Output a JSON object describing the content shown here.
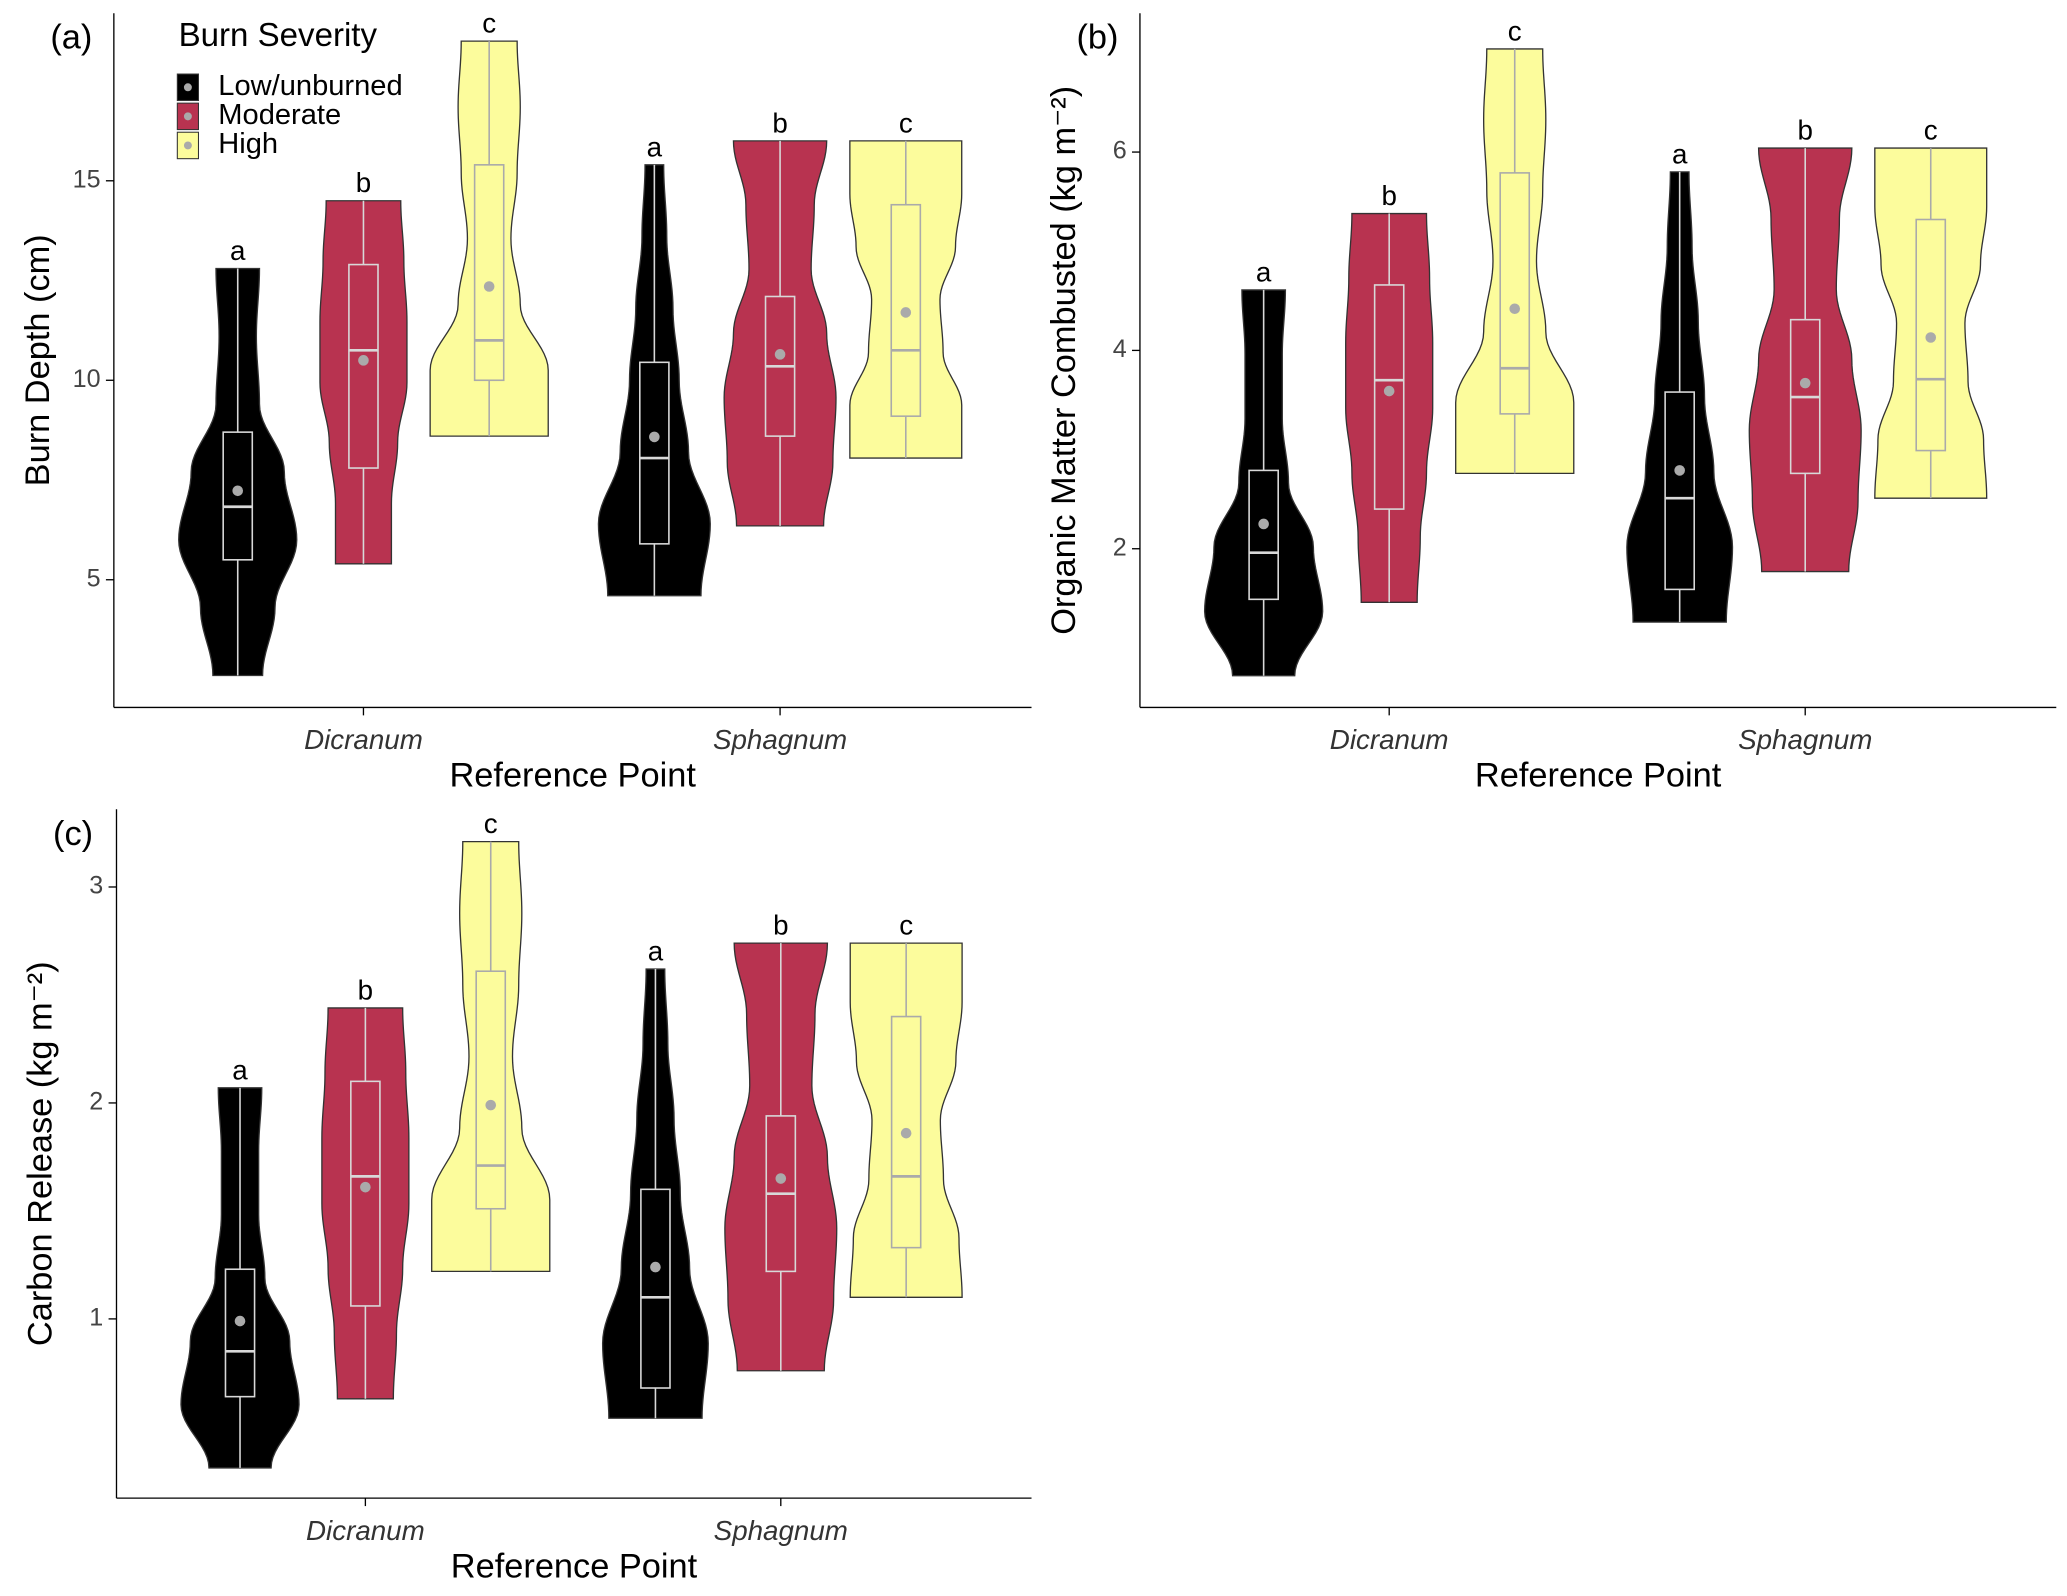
{
  "legend": {
    "title": "Burn Severity",
    "entries": [
      {
        "name": "Low/unburned",
        "color": "#000000"
      },
      {
        "name": "Moderate",
        "color": "#b83350"
      },
      {
        "name": "High",
        "color": "#fcfc9c"
      }
    ]
  },
  "chart_data": [
    {
      "type": "violin",
      "panel_label": "(a)",
      "x_label": "Reference Point",
      "y_label": "Burn Depth (cm)",
      "categories": [
        "Dicranum",
        "Sphagnum"
      ],
      "ylim": [
        1.8,
        19.2
      ],
      "yticks": [
        5,
        10,
        15
      ],
      "series": [
        {
          "color": "#000000",
          "values": [
            {
              "min": 2.6,
              "q1": 5.5,
              "median": 6.83,
              "q3": 8.7,
              "max": 12.8,
              "mean": 7.23,
              "letter": "a",
              "density": [
                0.4,
                0.6,
                0.95,
                0.75,
                0.35,
                0.3,
                0.35
              ]
            },
            {
              "min": 4.6,
              "q1": 5.9,
              "median": 8.05,
              "q3": 10.45,
              "max": 15.4,
              "mean": 8.58,
              "letter": "a",
              "density": [
                0.75,
                0.9,
                0.55,
                0.4,
                0.3,
                0.2,
                0.15
              ]
            }
          ]
        },
        {
          "color": "#b83350",
          "values": [
            {
              "min": 5.4,
              "q1": 7.8,
              "median": 10.75,
              "q3": 12.9,
              "max": 14.5,
              "mean": 10.5,
              "letter": "b",
              "density": [
                0.45,
                0.45,
                0.55,
                0.7,
                0.7,
                0.65,
                0.6
              ]
            },
            {
              "min": 6.35,
              "q1": 8.6,
              "median": 10.35,
              "q3": 12.1,
              "max": 16.0,
              "mean": 10.65,
              "letter": "b",
              "density": [
                0.7,
                0.85,
                0.9,
                0.75,
                0.5,
                0.55,
                0.75
              ]
            }
          ]
        },
        {
          "color": "#fcfc9c",
          "values": [
            {
              "min": 8.6,
              "q1": 10.0,
              "median": 11.0,
              "q3": 15.4,
              "max": 18.5,
              "mean": 12.35,
              "letter": "c",
              "density": [
                0.95,
                0.95,
                0.5,
                0.35,
                0.45,
                0.5,
                0.45
              ]
            },
            {
              "min": 8.05,
              "q1": 9.1,
              "median": 10.75,
              "q3": 14.4,
              "max": 16.0,
              "mean": 11.7,
              "letter": "c",
              "density": [
                0.9,
                0.9,
                0.6,
                0.55,
                0.8,
                0.9,
                0.9
              ]
            }
          ]
        }
      ]
    },
    {
      "type": "violin",
      "panel_label": "(b)",
      "x_label": "Reference Point",
      "y_label": "Organic Matter Combusted (kg m⁻²)",
      "categories": [
        "Dicranum",
        "Sphagnum"
      ],
      "ylim": [
        0.4,
        7.4
      ],
      "yticks": [
        2,
        4,
        6
      ],
      "series": [
        {
          "color": "#000000",
          "values": [
            {
              "min": 0.72,
              "q1": 1.49,
              "median": 1.96,
              "q3": 2.79,
              "max": 4.61,
              "mean": 2.25,
              "letter": "a",
              "density": [
                0.5,
                0.95,
                0.8,
                0.4,
                0.3,
                0.3,
                0.35
              ]
            },
            {
              "min": 1.26,
              "q1": 1.59,
              "median": 2.51,
              "q3": 3.58,
              "max": 5.8,
              "mean": 2.79,
              "letter": "a",
              "density": [
                0.75,
                0.85,
                0.55,
                0.4,
                0.3,
                0.2,
                0.15
              ]
            }
          ]
        },
        {
          "color": "#b83350",
          "values": [
            {
              "min": 1.46,
              "q1": 2.4,
              "median": 3.7,
              "q3": 4.66,
              "max": 5.38,
              "mean": 3.59,
              "letter": "b",
              "density": [
                0.45,
                0.5,
                0.6,
                0.7,
                0.7,
                0.65,
                0.6
              ]
            },
            {
              "min": 1.77,
              "q1": 2.76,
              "median": 3.53,
              "q3": 4.31,
              "max": 6.04,
              "mean": 3.67,
              "letter": "b",
              "density": [
                0.7,
                0.85,
                0.9,
                0.75,
                0.5,
                0.55,
                0.75
              ]
            }
          ]
        },
        {
          "color": "#fcfc9c",
          "values": [
            {
              "min": 2.76,
              "q1": 3.36,
              "median": 3.82,
              "q3": 5.79,
              "max": 7.04,
              "mean": 4.42,
              "letter": "c",
              "density": [
                0.95,
                0.95,
                0.5,
                0.35,
                0.45,
                0.5,
                0.45
              ]
            },
            {
              "min": 2.51,
              "q1": 2.99,
              "median": 3.71,
              "q3": 5.32,
              "max": 6.04,
              "mean": 4.13,
              "letter": "c",
              "density": [
                0.9,
                0.85,
                0.6,
                0.55,
                0.8,
                0.9,
                0.9
              ]
            }
          ]
        }
      ]
    },
    {
      "type": "violin",
      "panel_label": "(c)",
      "x_label": "Reference Point",
      "y_label": "Carbon Release (kg m⁻²)",
      "categories": [
        "Dicranum",
        "Sphagnum"
      ],
      "ylim": [
        0.17,
        3.36
      ],
      "yticks": [
        1,
        2,
        3
      ],
      "series": [
        {
          "color": "#000000",
          "values": [
            {
              "min": 0.31,
              "q1": 0.64,
              "median": 0.85,
              "q3": 1.23,
              "max": 2.07,
              "mean": 0.99,
              "letter": "a",
              "density": [
                0.5,
                0.95,
                0.8,
                0.4,
                0.3,
                0.3,
                0.35
              ]
            },
            {
              "min": 0.54,
              "q1": 0.68,
              "median": 1.1,
              "q3": 1.6,
              "max": 2.62,
              "mean": 1.24,
              "letter": "a",
              "density": [
                0.75,
                0.85,
                0.55,
                0.4,
                0.3,
                0.2,
                0.15
              ]
            }
          ]
        },
        {
          "color": "#b83350",
          "values": [
            {
              "min": 0.63,
              "q1": 1.06,
              "median": 1.66,
              "q3": 2.1,
              "max": 2.44,
              "mean": 1.61,
              "letter": "b",
              "density": [
                0.45,
                0.5,
                0.6,
                0.7,
                0.7,
                0.65,
                0.6
              ]
            },
            {
              "min": 0.76,
              "q1": 1.22,
              "median": 1.58,
              "q3": 1.94,
              "max": 2.74,
              "mean": 1.65,
              "letter": "b",
              "density": [
                0.7,
                0.85,
                0.9,
                0.75,
                0.5,
                0.55,
                0.75
              ]
            }
          ]
        },
        {
          "color": "#fcfc9c",
          "values": [
            {
              "min": 1.22,
              "q1": 1.51,
              "median": 1.71,
              "q3": 2.61,
              "max": 3.21,
              "mean": 1.99,
              "letter": "c",
              "density": [
                0.95,
                0.95,
                0.5,
                0.35,
                0.45,
                0.5,
                0.45
              ]
            },
            {
              "min": 1.1,
              "q1": 1.33,
              "median": 1.66,
              "q3": 2.4,
              "max": 2.74,
              "mean": 1.86,
              "letter": "c",
              "density": [
                0.9,
                0.85,
                0.6,
                0.55,
                0.8,
                0.9,
                0.9
              ]
            }
          ]
        }
      ]
    }
  ]
}
